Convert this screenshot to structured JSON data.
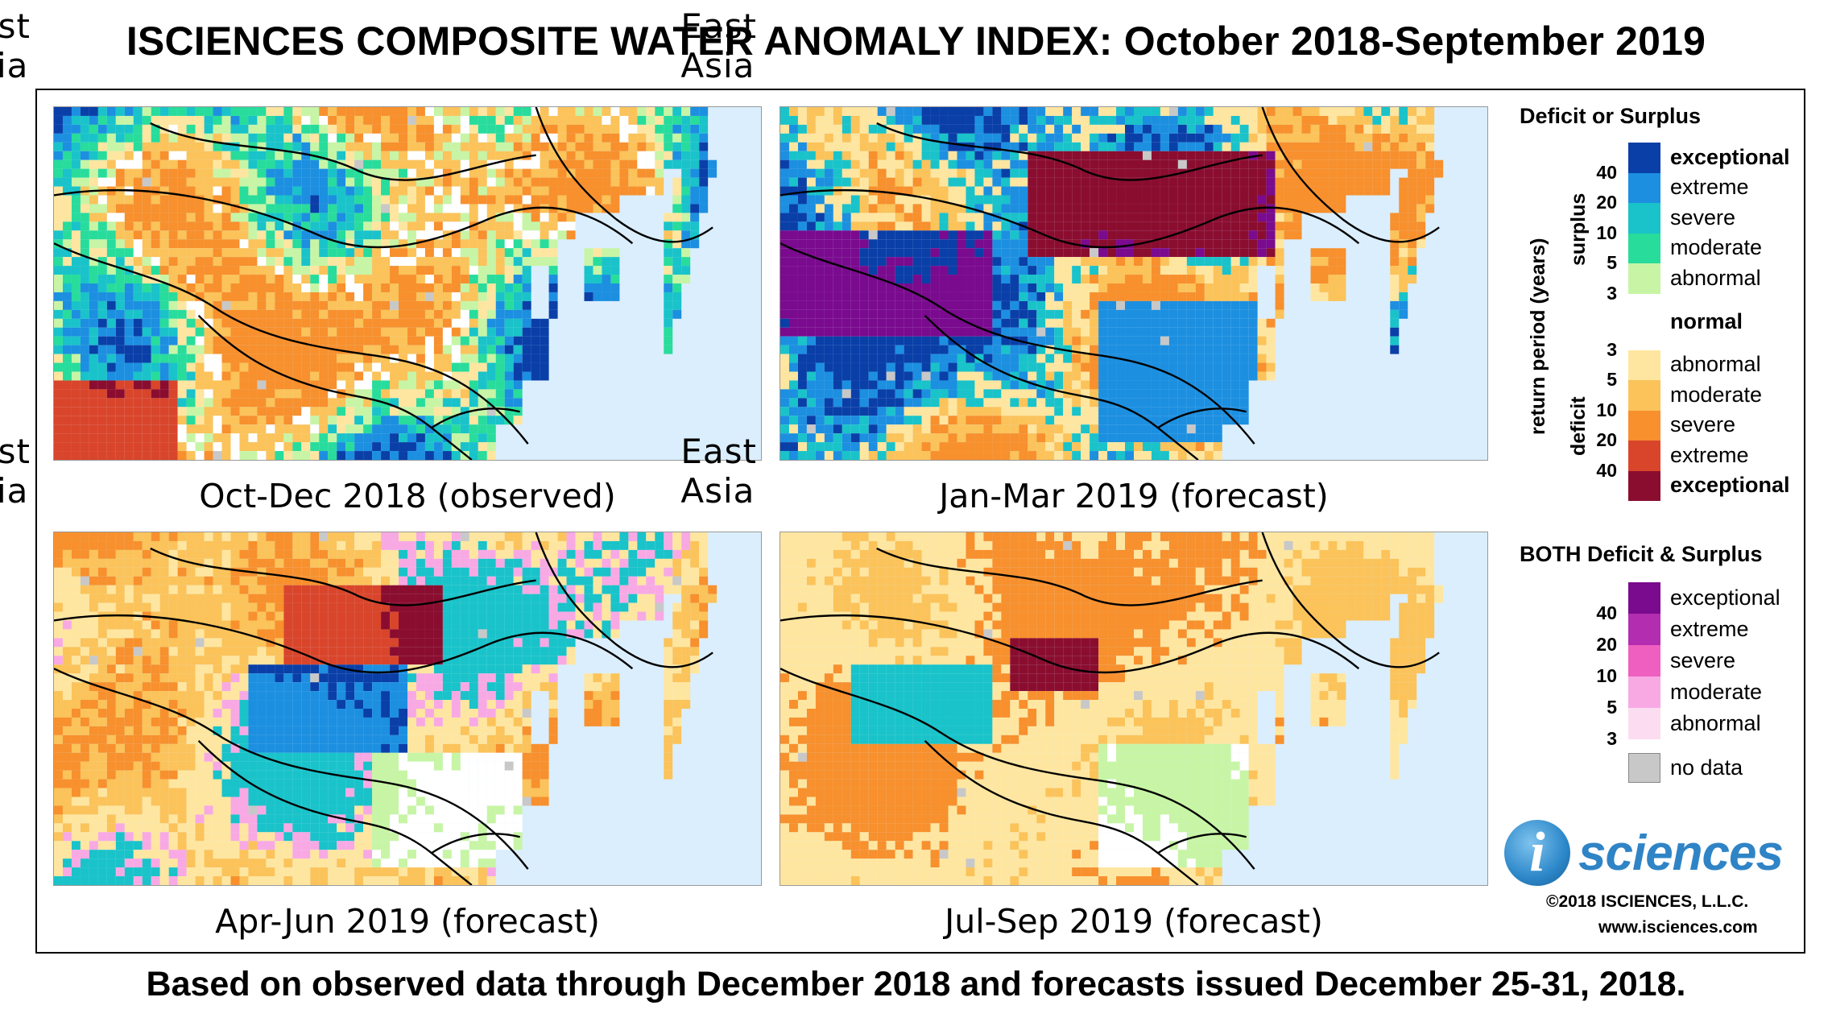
{
  "title": "ISCIENCES COMPOSITE WATER ANOMALY INDEX: October 2018-September 2019",
  "footer": "Based on observed data through December 2018 and forecasts issued December 25-31, 2018.",
  "panels": [
    {
      "region": "East Asia",
      "caption": "Oct-Dec 2018 (observed)"
    },
    {
      "region": "East Asia",
      "caption": "Jan-Mar 2019 (forecast)"
    },
    {
      "region": "East Asia",
      "caption": "Apr-Jun 2019 (forecast)"
    },
    {
      "region": "East Asia",
      "caption": "Jul-Sep 2019 (forecast)"
    }
  ],
  "legend": {
    "deficit_surplus_title": "Deficit or Surplus",
    "axis_label": "return period (years)",
    "surplus_label": "surplus",
    "deficit_label": "deficit",
    "surplus": [
      {
        "label": "exceptional",
        "color": "#0a3fa8",
        "bold": true
      },
      {
        "label": "extreme",
        "color": "#1c8fe0",
        "bold": false
      },
      {
        "label": "severe",
        "color": "#19c3c9",
        "bold": false
      },
      {
        "label": "moderate",
        "color": "#28dc9c",
        "bold": false
      },
      {
        "label": "abnormal",
        "color": "#c7f5a5",
        "bold": false
      }
    ],
    "normal": {
      "label": "normal",
      "color": "#ffffff"
    },
    "deficit": [
      {
        "label": "abnormal",
        "color": "#ffe6a0",
        "bold": false
      },
      {
        "label": "moderate",
        "color": "#fbc35a",
        "bold": false
      },
      {
        "label": "severe",
        "color": "#f7902d",
        "bold": false
      },
      {
        "label": "extreme",
        "color": "#d9452b",
        "bold": false
      },
      {
        "label": "exceptional",
        "color": "#8a0d30",
        "bold": true
      }
    ],
    "surplus_ticks": [
      "40",
      "20",
      "10",
      "5",
      "3"
    ],
    "deficit_ticks": [
      "3",
      "5",
      "10",
      "20",
      "40"
    ],
    "both_title": "BOTH Deficit & Surplus",
    "both": [
      {
        "label": "exceptional",
        "color": "#7a0a8e"
      },
      {
        "label": "extreme",
        "color": "#b22db0"
      },
      {
        "label": "severe",
        "color": "#ee5fbf"
      },
      {
        "label": "moderate",
        "color": "#f8a9e4"
      },
      {
        "label": "abnormal",
        "color": "#fcdcf1"
      }
    ],
    "both_ticks": [
      "40",
      "20",
      "10",
      "5",
      "3"
    ],
    "no_data": {
      "label": "no data",
      "color": "#c8c8c8"
    }
  },
  "logo": {
    "letter": "i",
    "text": "sciences"
  },
  "copyright": "©2018 ISCIENCES, L.L.C.",
  "website": "www.isciences.com",
  "colors": {
    "ocean": "#dbeefd",
    "border": "#000000"
  }
}
